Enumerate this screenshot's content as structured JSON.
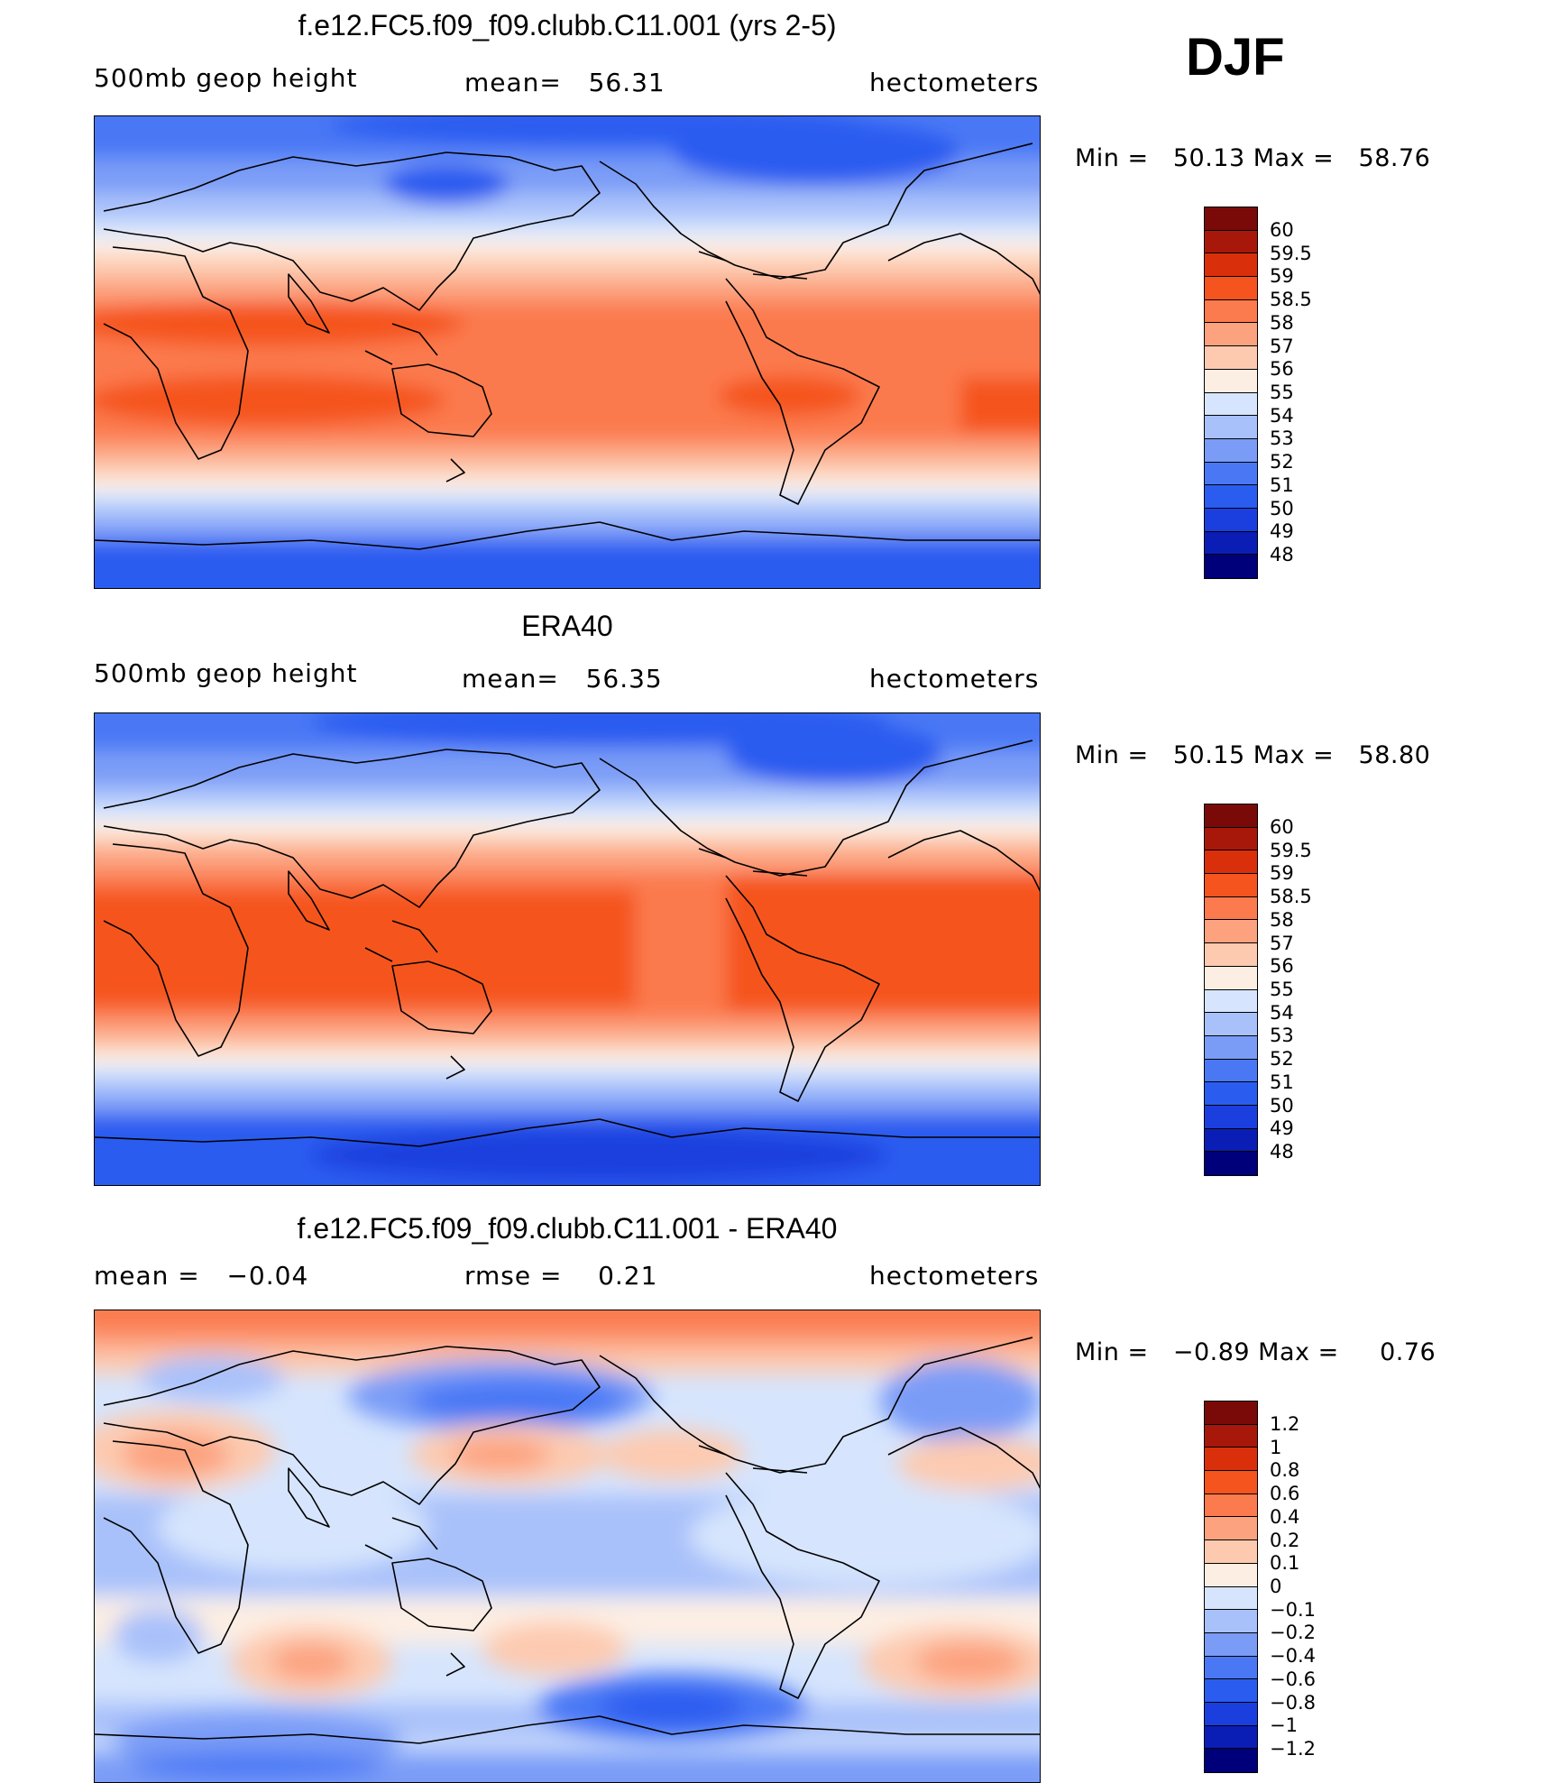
{
  "season": "DJF",
  "palette": {
    "abs": [
      "#00007a",
      "#0a1eb5",
      "#1a3fde",
      "#2a5cf0",
      "#4a78f5",
      "#7a9cf7",
      "#a9c1fa",
      "#d6e5fd",
      "#fdeee3",
      "#fdcab0",
      "#fca27f",
      "#fb7a4e",
      "#f5541f",
      "#d9300b",
      "#a8180a",
      "#7a0a08"
    ],
    "diff": [
      "#00007a",
      "#0a1eb5",
      "#1a3fde",
      "#2a5cf0",
      "#4a78f5",
      "#7a9cf7",
      "#a9c1fa",
      "#d6e5fd",
      "#fdeee3",
      "#fdcab0",
      "#fca27f",
      "#fb7a4e",
      "#f5541f",
      "#d9300b",
      "#a8180a",
      "#7a0a08"
    ]
  },
  "panels": [
    {
      "title": "f.e12.FC5.f09_f09.clubb.C11.001 (yrs 2-5)",
      "left_label": "500mb geop height",
      "center_label": "mean=   56.31",
      "right_label": "hectometers",
      "min_max": "Min =   50.13 Max =   58.76",
      "colorbar_labels": [
        "60",
        "59.5",
        "59",
        "58.5",
        "58",
        "57",
        "56",
        "55",
        "54",
        "53",
        "52",
        "51",
        "50",
        "49",
        "48"
      ]
    },
    {
      "title": "ERA40",
      "left_label": "500mb geop height",
      "center_label": "mean=   56.35",
      "right_label": "hectometers",
      "min_max": "Min =   50.15 Max =   58.80",
      "colorbar_labels": [
        "60",
        "59.5",
        "59",
        "58.5",
        "58",
        "57",
        "56",
        "55",
        "54",
        "53",
        "52",
        "51",
        "50",
        "49",
        "48"
      ]
    },
    {
      "title": "f.e12.FC5.f09_f09.clubb.C11.001 - ERA40",
      "left_label": "mean =   −0.04",
      "center_label": "rmse =    0.21",
      "right_label": "hectometers",
      "min_max": "Min =   −0.89 Max =     0.76",
      "colorbar_labels": [
        "1.2",
        "1",
        "0.8",
        "0.6",
        "0.4",
        "0.2",
        "0.1",
        "0",
        "−0.1",
        "−0.2",
        "−0.4",
        "−0.6",
        "−0.8",
        "−1",
        "−1.2"
      ]
    }
  ]
}
